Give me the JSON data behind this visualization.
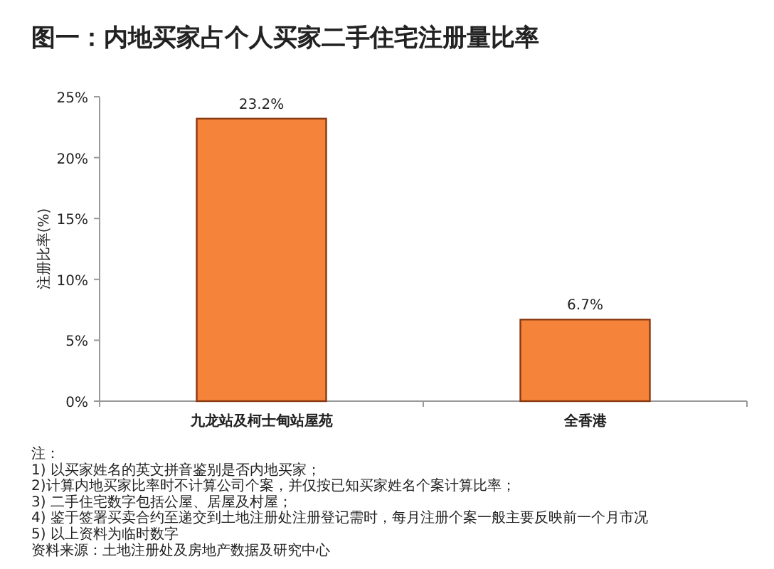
{
  "chart_data": {
    "type": "bar",
    "title": "图一：内地买家占个人买家二手住宅注册量比率",
    "ylabel": "注册比率(%)",
    "categories": [
      "九龙站及柯士甸站屋苑",
      "全香港"
    ],
    "values": [
      23.2,
      6.7
    ],
    "value_labels": [
      "23.2%",
      "6.7%"
    ],
    "color": "#f5843a",
    "ylim": [
      0,
      25
    ],
    "yticks": [
      {
        "value": 0,
        "label": "0%"
      },
      {
        "value": 5,
        "label": "5%"
      },
      {
        "value": 10,
        "label": "10%"
      },
      {
        "value": 15,
        "label": "15%"
      },
      {
        "value": 20,
        "label": "20%"
      },
      {
        "value": 25,
        "label": "25%"
      }
    ],
    "grid": false,
    "annotations": [
      "注：",
      "1) 以买家姓名的英文拼音鉴别是否内地买家；",
      "2)计算内地买家比率时不计算公司个案，并仅按已知买家姓名个案计算比率；",
      "3) 二手住宅数字包括公屋、居屋及村屋；",
      "4) 鉴于签署买卖合约至递交到土地注册处注册登记需时，每月注册个案一般主要反映前一个月市况",
      "5) 以上资料为临时数字",
      "资料来源：土地注册处及房地产数据及研究中心"
    ]
  }
}
